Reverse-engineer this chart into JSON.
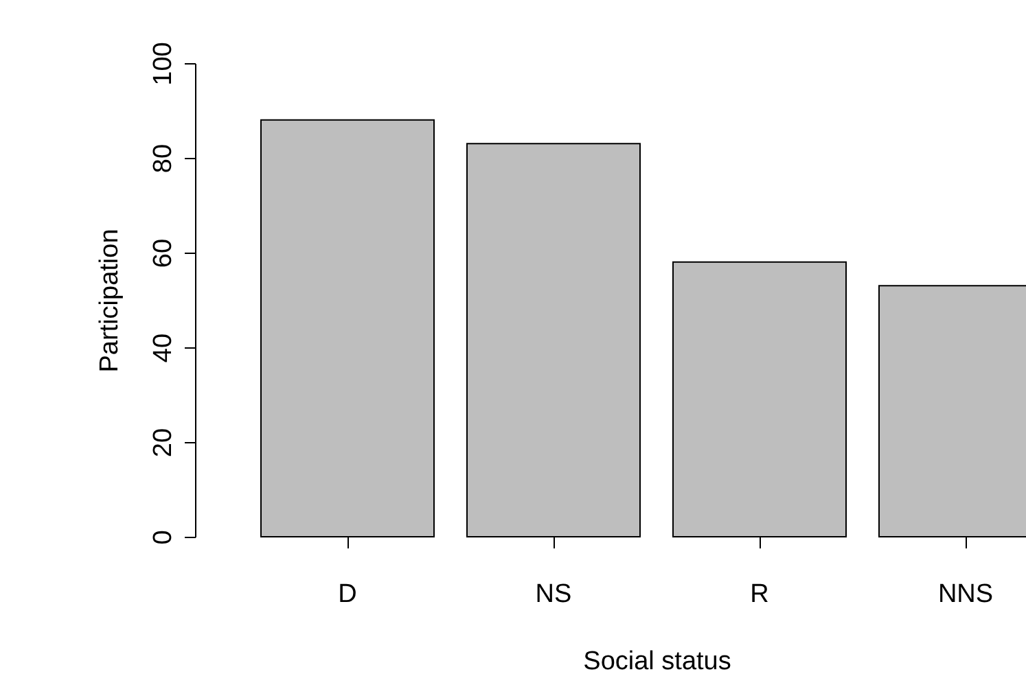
{
  "chart_data": {
    "type": "bar",
    "xlabel": "Social status",
    "ylabel": "Participation",
    "categories": [
      "D",
      "NS",
      "R",
      "NNS"
    ],
    "values": [
      88,
      83,
      58,
      53
    ],
    "color": "#bebebe",
    "ylim": [
      0,
      100
    ],
    "yticks": [
      0,
      20,
      40,
      60,
      80,
      100
    ],
    "grid": false
  }
}
